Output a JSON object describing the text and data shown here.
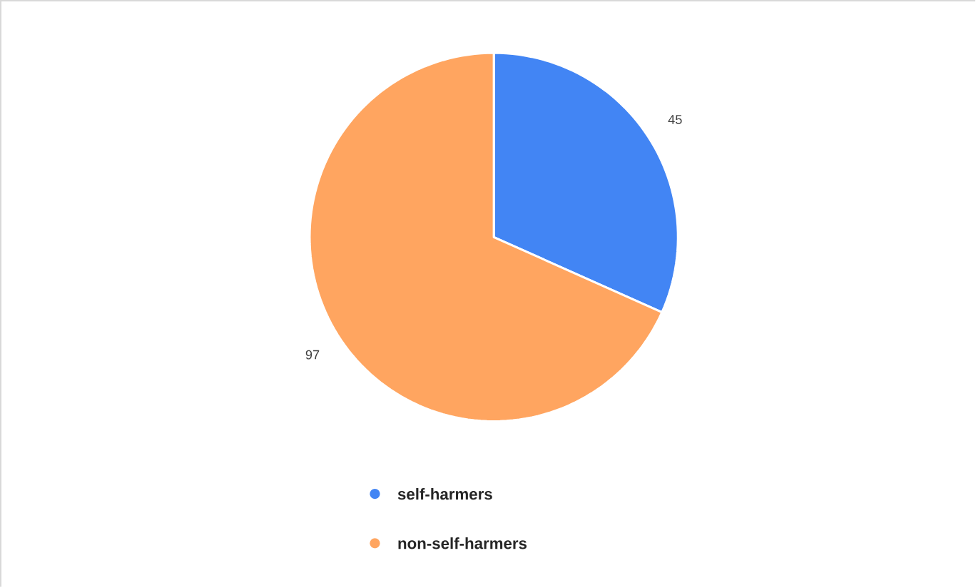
{
  "chart_data": {
    "type": "pie",
    "categories": [
      "self-harmers",
      "non-self-harmers"
    ],
    "values": [
      45,
      97
    ],
    "colors": [
      "#4285f4",
      "#ffa560"
    ],
    "data_labels": true,
    "legend": "bottom"
  }
}
